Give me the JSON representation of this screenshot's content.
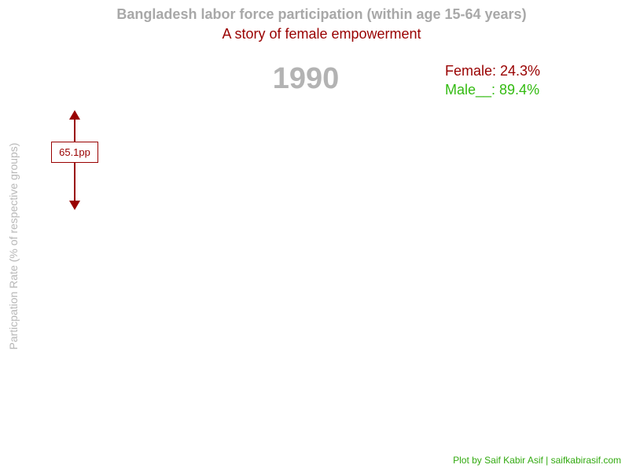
{
  "chart_data": {
    "type": "line",
    "title": "Bangladesh labor force participation (within age 15-64 years)",
    "subtitle": "A story of female empowerment",
    "ylabel": "Particpation Rate (% of respective groups)",
    "year": "1990",
    "series": [
      {
        "name": "Female",
        "value": 24.3,
        "label": "Female: 24.3%",
        "color": "#990000"
      },
      {
        "name": "Male",
        "value": 89.4,
        "label": "Male__: 89.4%",
        "color": "#33bb11"
      }
    ],
    "gap": {
      "value": 65.1,
      "label": "65.1pp",
      "color": "#990000"
    },
    "caption": "Plot by Saif Kabir Asif | saifkabirasif.com",
    "grid": false
  }
}
